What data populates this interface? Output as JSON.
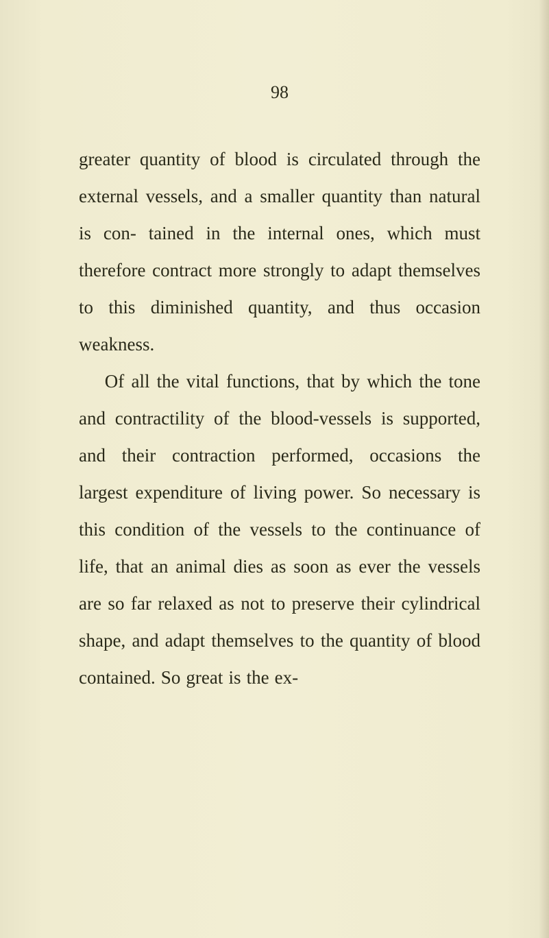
{
  "page_number": "98",
  "paragraphs": [
    "greater quantity of blood is circulated through the external vessels, and a smaller quantity than natural is con- tained in the internal ones, which must therefore contract more strongly to adapt themselves to this diminished quantity, and thus occasion weakness.",
    "Of all the vital functions, that by which the tone and contractility of the blood-vessels is supported, and their contraction performed, occasions the largest expenditure of living power. So necessary is this condition of the vessels to the continuance of life, that an animal dies as soon as ever the vessels are so far relaxed as not to preserve their cylindrical shape, and adapt themselves to the quantity of blood contained. So great is the ex-"
  ],
  "colors": {
    "background": "#f0ecd0",
    "text": "#2a2a1a",
    "edge_tint": "#e8e4c8"
  },
  "typography": {
    "body_font_size": 27,
    "page_number_font_size": 26,
    "line_height": 2.0,
    "font_family": "Georgia, Times New Roman, serif"
  }
}
